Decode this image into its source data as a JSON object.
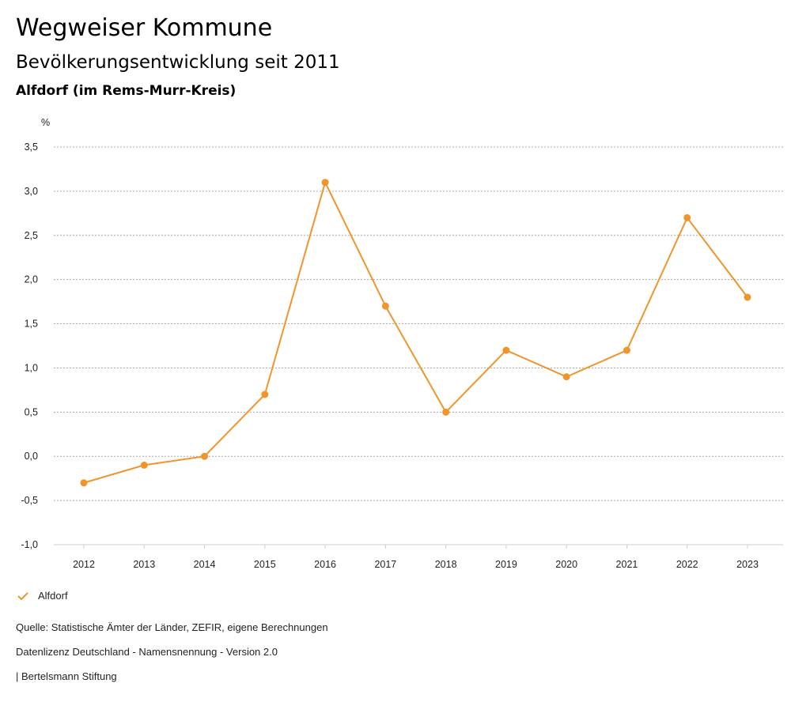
{
  "header": {
    "title": "Wegweiser Kommune",
    "subtitle": "Bevölkerungsentwicklung seit 2011",
    "region": "Alfdorf (im Rems-Murr-Kreis)"
  },
  "chart_data": {
    "type": "line",
    "ylabel": "%",
    "ylim": [
      -1.0,
      3.5
    ],
    "yticks": [
      "3,5",
      "3,0",
      "2,5",
      "2,0",
      "1,5",
      "1,0",
      "0,5",
      "0,0",
      "-0,5",
      "-1,0"
    ],
    "ytick_values": [
      3.5,
      3.0,
      2.5,
      2.0,
      1.5,
      1.0,
      0.5,
      0.0,
      -0.5,
      -1.0
    ],
    "categories": [
      "2012",
      "2013",
      "2014",
      "2015",
      "2016",
      "2017",
      "2018",
      "2019",
      "2020",
      "2021",
      "2022",
      "2023"
    ],
    "series": [
      {
        "name": "Alfdorf",
        "color": "#f0952b",
        "values": [
          -0.3,
          -0.1,
          0.0,
          0.7,
          3.1,
          1.7,
          0.5,
          1.2,
          0.9,
          1.2,
          2.7,
          1.8
        ]
      }
    ],
    "grid": true,
    "legend": "bottom-left"
  },
  "footer": {
    "source": "Quelle: Statistische Ämter der Länder, ZEFIR, eigene Berechnungen",
    "license": "Datenlizenz Deutschland - Namensnennung - Version 2.0",
    "credit": "| Bertelsmann Stiftung"
  }
}
